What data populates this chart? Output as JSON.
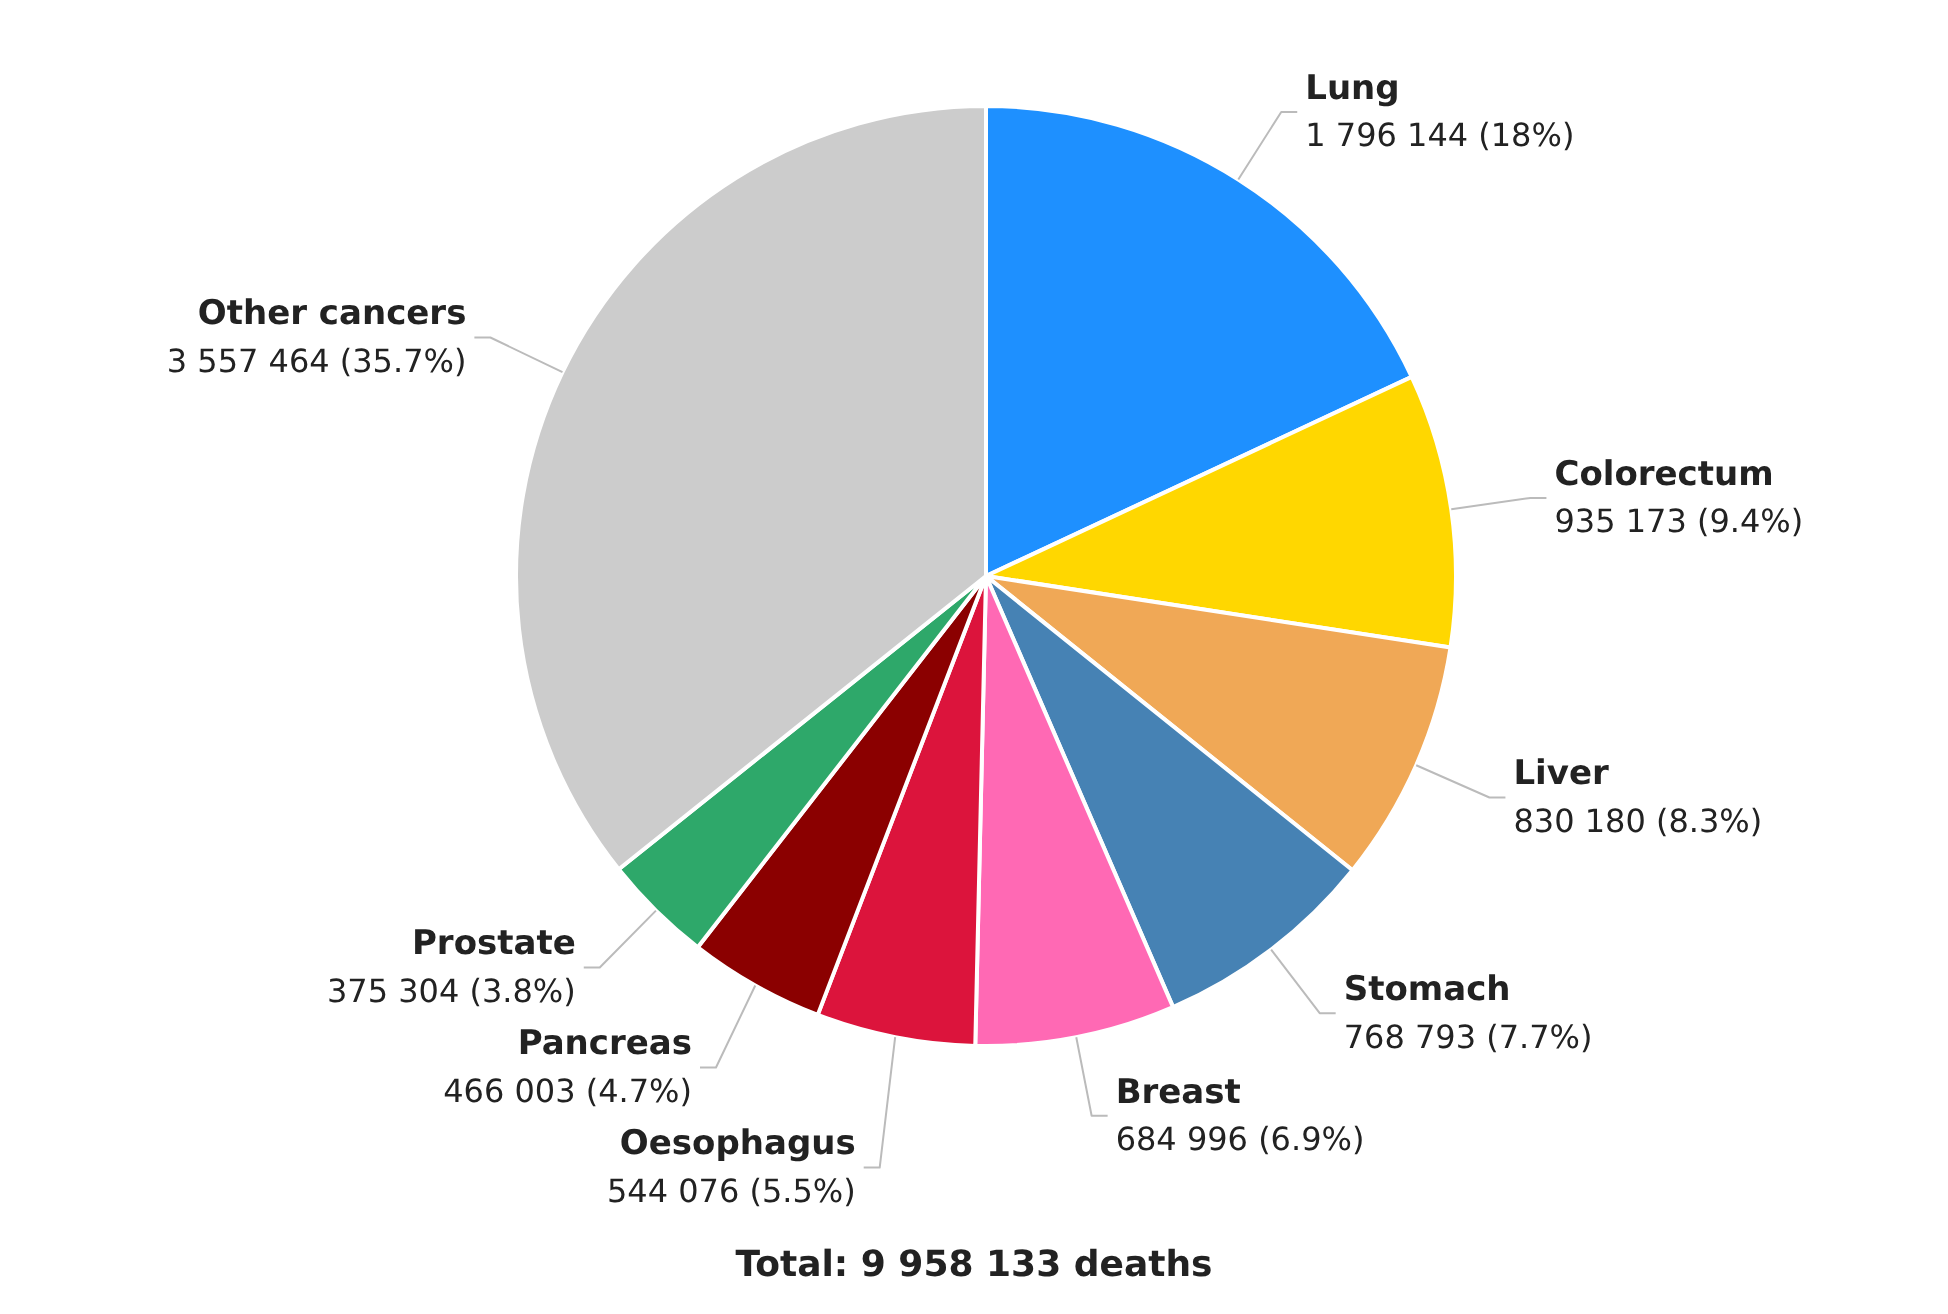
{
  "chart_data": {
    "type": "pie",
    "title": "Total: 9 958 133 deaths",
    "categories": [
      "Lung",
      "Colorectum",
      "Liver",
      "Stomach",
      "Breast",
      "Oesophagus",
      "Pancreas",
      "Prostate",
      "Other cancers"
    ],
    "values": [
      1796144,
      935173,
      830180,
      768793,
      684996,
      544076,
      466003,
      375304,
      3557464
    ],
    "value_labels": [
      "1 796 144 (18%)",
      "935 173 (9.4%)",
      "830 180 (8.3%)",
      "768 793 (7.7%)",
      "684 996 (6.9%)",
      "544 076 (5.5%)",
      "466 003 (4.7%)",
      "375 304 (3.8%)",
      "3 557 464 (35.7%)"
    ],
    "colors": [
      "#1e90ff",
      "#ffd700",
      "#f0a856",
      "#4682b4",
      "#ff69b4",
      "#dc143c",
      "#8b0000",
      "#2ea86a",
      "#cccccc"
    ],
    "legend": false
  }
}
